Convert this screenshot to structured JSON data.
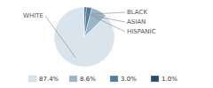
{
  "chart_data": {
    "type": "pie",
    "categories": [
      "WHITE",
      "HISPANIC",
      "ASIAN",
      "BLACK"
    ],
    "values": [
      87.4,
      8.6,
      3.0,
      1.0
    ],
    "value_labels": [
      "87.4%",
      "8.6%",
      "3.0%",
      "1.0%"
    ],
    "colors": [
      "#d9e4ec",
      "#9ab4c8",
      "#4e7d9e",
      "#1f4e6e"
    ],
    "legend": "bottom"
  }
}
